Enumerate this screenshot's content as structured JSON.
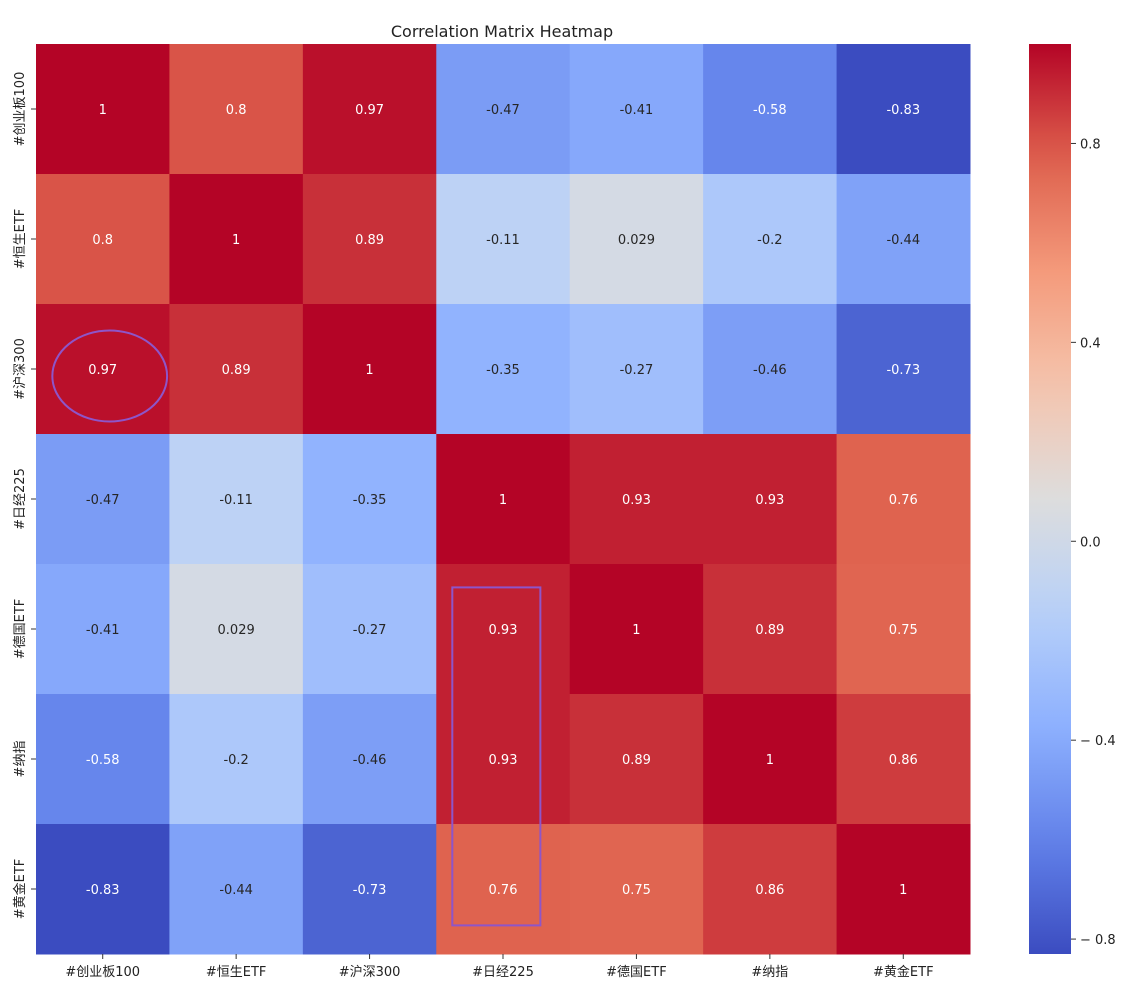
{
  "chart_data": {
    "type": "heatmap",
    "title": "Correlation Matrix Heatmap",
    "xlabels": [
      "#创业板100",
      "#恒生ETF",
      "#沪深300",
      "#日经225",
      "#德国ETF",
      "#纳指",
      "#黄金ETF"
    ],
    "ylabels": [
      "#创业板100",
      "#恒生ETF",
      "#沪深300",
      "#日经225",
      "#德国ETF",
      "#纳指",
      "#黄金ETF"
    ],
    "values": [
      [
        1,
        0.8,
        0.97,
        -0.47,
        -0.41,
        -0.58,
        -0.83
      ],
      [
        0.8,
        1,
        0.89,
        -0.11,
        0.029,
        -0.2,
        -0.44
      ],
      [
        0.97,
        0.89,
        1,
        -0.35,
        -0.27,
        -0.46,
        -0.73
      ],
      [
        -0.47,
        -0.11,
        -0.35,
        1,
        0.93,
        0.93,
        0.76
      ],
      [
        -0.41,
        0.029,
        -0.27,
        0.93,
        1,
        0.89,
        0.75
      ],
      [
        -0.58,
        -0.2,
        -0.46,
        0.93,
        0.89,
        1,
        0.86
      ],
      [
        -0.83,
        -0.44,
        -0.73,
        0.76,
        0.75,
        0.86,
        1
      ]
    ],
    "cell_labels": [
      [
        "1",
        "0.8",
        "0.97",
        "-0.47",
        "-0.41",
        "-0.58",
        "-0.83"
      ],
      [
        "0.8",
        "1",
        "0.89",
        "-0.11",
        "0.029",
        "-0.2",
        "-0.44"
      ],
      [
        "0.97",
        "0.89",
        "1",
        "-0.35",
        "-0.27",
        "-0.46",
        "-0.73"
      ],
      [
        "-0.47",
        "-0.11",
        "-0.35",
        "1",
        "0.93",
        "0.93",
        "0.76"
      ],
      [
        "-0.41",
        "0.029",
        "-0.27",
        "0.93",
        "1",
        "0.89",
        "0.75"
      ],
      [
        "-0.58",
        "-0.2",
        "-0.46",
        "0.93",
        "0.89",
        "1",
        "0.86"
      ],
      [
        "-0.83",
        "-0.44",
        "-0.73",
        "0.76",
        "0.75",
        "0.86",
        "1"
      ]
    ],
    "colormap": "coolwarm",
    "vmin": -0.83,
    "vmax": 1.0,
    "colorbar": {
      "ticks": [
        {
          "value": 0.8,
          "label": "0.8"
        },
        {
          "value": 0.4,
          "label": "0.4"
        },
        {
          "value": 0.0,
          "label": "0.0"
        },
        {
          "value": -0.4,
          "label": "− 0.4"
        },
        {
          "value": -0.8,
          "label": "− 0.8"
        }
      ]
    },
    "annotations": [
      {
        "shape": "ellipse",
        "target": {
          "row": 2,
          "col": 0
        }
      },
      {
        "shape": "rectangle",
        "target": {
          "col": 3,
          "row_start": 4,
          "row_end": 6
        }
      }
    ],
    "annotation_color": "#8e55c9"
  }
}
